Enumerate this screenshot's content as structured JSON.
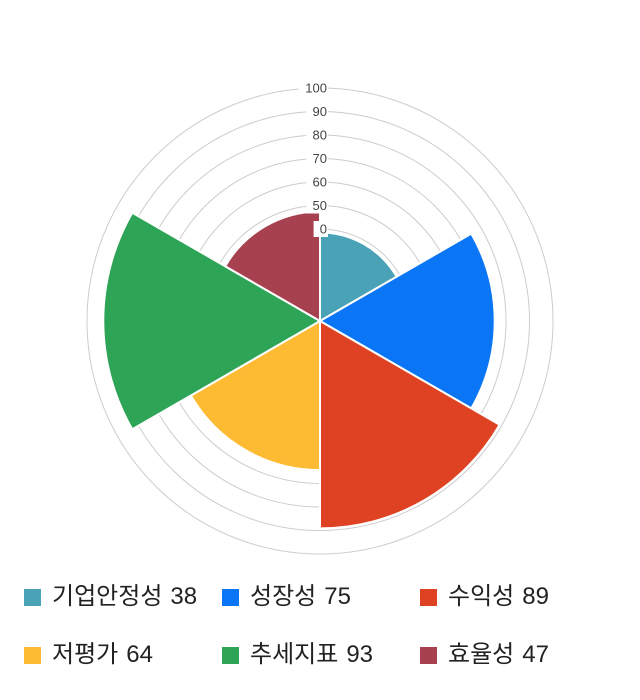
{
  "chart_data": {
    "type": "polar_area",
    "title": "",
    "categories": [
      "기업안정성",
      "성장성",
      "수익성",
      "저평가",
      "추세지표",
      "효율성"
    ],
    "values": [
      38,
      75,
      89,
      64,
      93,
      47
    ],
    "colors": [
      "#4AA2B6",
      "#0A76F5",
      "#DF4222",
      "#FDBB33",
      "#2EA457",
      "#A8414F"
    ],
    "radial_ticks": [
      "0",
      "50",
      "60",
      "70",
      "80",
      "90",
      "100"
    ],
    "value_range": [
      0,
      100
    ],
    "start_angle_deg": 0,
    "sector_sweep_deg": 60,
    "grid": true,
    "gridline_color": "#cccccc",
    "tick_label_color": "#444444",
    "legend_position": "bottom",
    "legend_text_color": "#222222",
    "background_color": "#ffffff"
  }
}
